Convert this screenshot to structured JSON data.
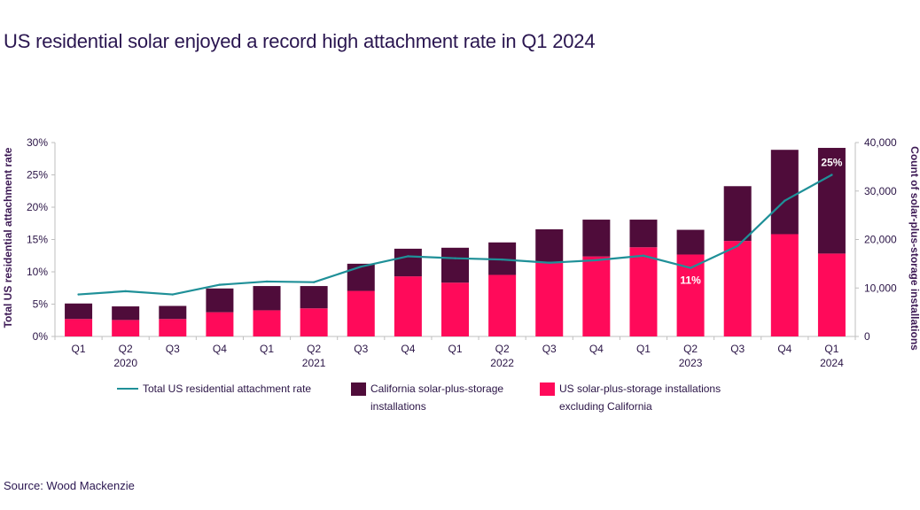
{
  "title": "US residential solar enjoyed a record high attachment rate in Q1 2024",
  "source": "Source: Wood Mackenzie",
  "colors": {
    "california": "#4f0c3a",
    "us_excl_ca": "#ff0a5a",
    "rate_line": "#1f9098",
    "axis": "#bfbfbf",
    "text": "#2a1446"
  },
  "legend": [
    {
      "label": "Total US residential attachment rate",
      "kind": "line"
    },
    {
      "label": "California solar-plus-storage installations",
      "kind": "bar"
    },
    {
      "label": "US solar-plus-storage installations excluding California",
      "kind": "bar"
    }
  ],
  "chart_data": {
    "type": "bar",
    "stacked": true,
    "categories": [
      "Q1",
      "Q2",
      "Q3",
      "Q4",
      "Q1",
      "Q2",
      "Q3",
      "Q4",
      "Q1",
      "Q2",
      "Q3",
      "Q4",
      "Q1",
      "Q2",
      "Q3",
      "Q4",
      "Q1"
    ],
    "year_labels": [
      {
        "index": 1,
        "label": "2020"
      },
      {
        "index": 5,
        "label": "2021"
      },
      {
        "index": 9,
        "label": "2022"
      },
      {
        "index": 13,
        "label": "2023"
      },
      {
        "index": 16,
        "label": "2024"
      }
    ],
    "series": [
      {
        "name": "US solar-plus-storage installations excluding California",
        "axis": "right",
        "values": [
          3600,
          3400,
          3600,
          5000,
          5400,
          5800,
          9400,
          12400,
          11100,
          12700,
          15400,
          16500,
          18400,
          16900,
          19700,
          21100,
          17100
        ]
      },
      {
        "name": "California solar-plus-storage installations",
        "axis": "right",
        "values": [
          3200,
          2800,
          2700,
          4900,
          5000,
          4600,
          5600,
          5700,
          7200,
          6700,
          6700,
          7600,
          5700,
          5100,
          11300,
          17400,
          21800
        ]
      },
      {
        "name": "Total US residential attachment rate",
        "type": "line",
        "axis": "left",
        "values": [
          6.5,
          7.0,
          6.5,
          8.0,
          8.5,
          8.4,
          10.8,
          12.4,
          12.1,
          11.9,
          11.4,
          11.8,
          12.5,
          10.6,
          14.0,
          21.0,
          25.0
        ]
      }
    ],
    "data_labels": [
      {
        "index": 13,
        "text": "11%"
      },
      {
        "index": 16,
        "text": "25%"
      }
    ],
    "ylabel_left": "Total US residential attachment rate",
    "ylabel_right": "Count of solar-plus-storage installations",
    "ylim_left": [
      0,
      30
    ],
    "yticks_left": [
      "0%",
      "5%",
      "10%",
      "15%",
      "20%",
      "25%",
      "30%"
    ],
    "ylim_right": [
      0,
      40000
    ],
    "yticks_right": [
      "0",
      "10,000",
      "20,000",
      "30,000",
      "40,000"
    ],
    "grid": false,
    "legend_position": "bottom"
  }
}
